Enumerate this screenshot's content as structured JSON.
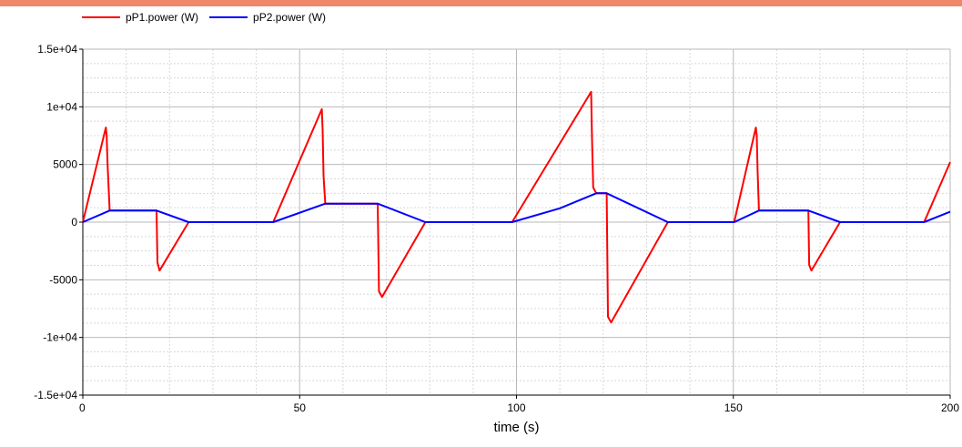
{
  "colors": {
    "topbar": "#f0876a",
    "grid_major": "#b9b9b9",
    "grid_minor": "#d8d8d8",
    "axis": "#000000",
    "pP1": "#ff0000",
    "pP2": "#0000ff"
  },
  "chart_data": {
    "type": "line",
    "title": "",
    "xlabel": "time (s)",
    "ylabel": "",
    "xlim": [
      0,
      200
    ],
    "ylim": [
      -15000,
      15000
    ],
    "xticks": [
      0,
      50,
      100,
      150,
      200
    ],
    "xtick_labels": [
      "0",
      "50",
      "100",
      "150",
      "200"
    ],
    "yticks": [
      15000,
      10000,
      5000,
      0,
      -5000,
      -10000,
      -15000
    ],
    "ytick_labels": [
      "1.5e+04",
      "1e+04",
      "5000",
      "0",
      "-5000",
      "-1e+04",
      "-1.5e+04"
    ],
    "grid": true,
    "legend_position": "top-left",
    "series": [
      {
        "name": "pP1.power (W)",
        "color": "#ff0000",
        "x": [
          0,
          5.3,
          5.5,
          5.7,
          6.2,
          17,
          17.2,
          17.7,
          24.4,
          43.9,
          55.1,
          55.3,
          55.5,
          55.9,
          68,
          68.3,
          69,
          79,
          99,
          117.2,
          117.4,
          117.7,
          118.4,
          120.8,
          121.1,
          121.8,
          134.9,
          150.2,
          155.2,
          155.4,
          155.6,
          155.9,
          167.3,
          167.5,
          168,
          174.6,
          194,
          200
        ],
        "y": [
          0,
          8200,
          7500,
          5000,
          1000,
          1000,
          -3500,
          -4200,
          0,
          0,
          9800,
          8000,
          4000,
          1600,
          1600,
          -6000,
          -6500,
          0,
          0,
          11300,
          7500,
          3000,
          2500,
          2500,
          -8200,
          -8700,
          0,
          0,
          8200,
          7500,
          4500,
          1000,
          1000,
          -3700,
          -4200,
          0,
          0,
          5200
        ]
      },
      {
        "name": "pP2.power (W)",
        "color": "#0000ff",
        "x": [
          0,
          6.2,
          17,
          24.4,
          43.9,
          55.9,
          68,
          79,
          99,
          110,
          118.4,
          120.8,
          134.9,
          150.2,
          155.9,
          167.3,
          174.6,
          194,
          200
        ],
        "y": [
          0,
          1000,
          1000,
          0,
          0,
          1600,
          1600,
          0,
          0,
          1200,
          2500,
          2500,
          0,
          0,
          1000,
          1000,
          0,
          0,
          900
        ]
      }
    ]
  }
}
